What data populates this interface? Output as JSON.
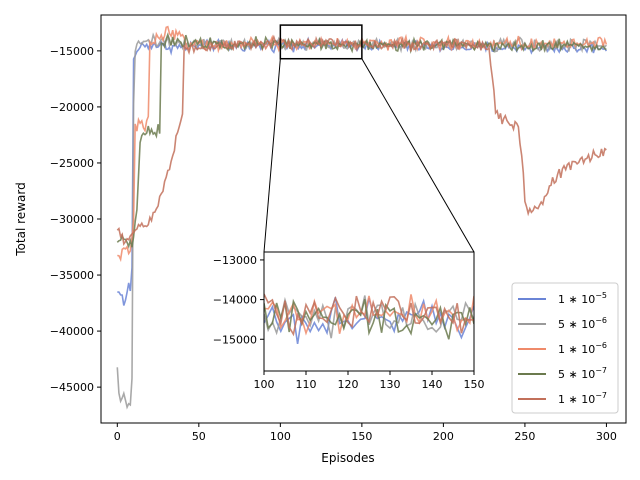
{
  "chart_data": {
    "type": "line",
    "xlabel": "Episodes",
    "ylabel": "Total reward",
    "xlim": [
      -10,
      312
    ],
    "ylim": [
      -48200,
      -11800
    ],
    "xticks": [
      0,
      50,
      100,
      150,
      200,
      250,
      300
    ],
    "yticks": [
      -45000,
      -40000,
      -35000,
      -30000,
      -25000,
      -20000,
      -15000
    ],
    "legend_position": "lower right",
    "grid": false,
    "series": [
      {
        "name": "1*10^-5",
        "legend_base": "1 ∗ 10",
        "legend_exp": "−5",
        "color": "#6a84d6",
        "keypoints": [
          [
            0,
            -36600
          ],
          [
            2,
            -36400
          ],
          [
            4,
            -37600
          ],
          [
            6,
            -36800
          ],
          [
            7,
            -35600
          ],
          [
            8,
            -36600
          ],
          [
            9,
            -34500
          ],
          [
            10,
            -15500
          ],
          [
            12,
            -15200
          ],
          [
            14,
            -14500
          ],
          [
            16,
            -14600
          ],
          [
            20,
            -14400
          ],
          [
            30,
            -14600
          ],
          [
            40,
            -14700
          ],
          [
            60,
            -14500
          ],
          [
            80,
            -14600
          ],
          [
            100,
            -14500
          ],
          [
            150,
            -14500
          ],
          [
            220,
            -14700
          ],
          [
            250,
            -14700
          ],
          [
            280,
            -14800
          ],
          [
            300,
            -14700
          ]
        ],
        "noise": 380
      },
      {
        "name": "5*10^-6",
        "legend_base": "5 ∗ 10",
        "legend_exp": "−6",
        "color": "#9a9a9a",
        "keypoints": [
          [
            0,
            -43600
          ],
          [
            1,
            -45500
          ],
          [
            2,
            -46300
          ],
          [
            4,
            -46100
          ],
          [
            6,
            -46400
          ],
          [
            7,
            -46100
          ],
          [
            8,
            -46500
          ],
          [
            9,
            -44000
          ],
          [
            10,
            -20000
          ],
          [
            11,
            -15000
          ],
          [
            14,
            -14300
          ],
          [
            20,
            -14000
          ],
          [
            40,
            -14300
          ],
          [
            60,
            -14400
          ],
          [
            100,
            -14400
          ],
          [
            150,
            -14400
          ],
          [
            220,
            -14500
          ],
          [
            250,
            -14400
          ],
          [
            280,
            -14500
          ],
          [
            300,
            -14400
          ]
        ],
        "noise": 420
      },
      {
        "name": "1*10^-6",
        "legend_base": "1 ∗ 10",
        "legend_exp": "−6",
        "color": "#ef8a6a",
        "keypoints": [
          [
            0,
            -33400
          ],
          [
            4,
            -32800
          ],
          [
            8,
            -33000
          ],
          [
            10,
            -30000
          ],
          [
            11,
            -22000
          ],
          [
            13,
            -21500
          ],
          [
            16,
            -21800
          ],
          [
            18,
            -21600
          ],
          [
            19,
            -20800
          ],
          [
            20,
            -14600
          ],
          [
            24,
            -13700
          ],
          [
            30,
            -13300
          ],
          [
            35,
            -13500
          ],
          [
            40,
            -13600
          ],
          [
            42,
            -14300
          ],
          [
            60,
            -14500
          ],
          [
            100,
            -14400
          ],
          [
            150,
            -14300
          ],
          [
            220,
            -14400
          ],
          [
            250,
            -14300
          ],
          [
            280,
            -14400
          ],
          [
            300,
            -14100
          ]
        ],
        "noise": 420
      },
      {
        "name": "5*10^-7",
        "legend_base": "5 ∗ 10",
        "legend_exp": "−7",
        "color": "#6b7a4e",
        "keypoints": [
          [
            0,
            -32000
          ],
          [
            5,
            -31600
          ],
          [
            9,
            -32500
          ],
          [
            10,
            -31500
          ],
          [
            12,
            -29000
          ],
          [
            14,
            -23000
          ],
          [
            16,
            -22200
          ],
          [
            20,
            -22000
          ],
          [
            24,
            -22500
          ],
          [
            26,
            -21800
          ],
          [
            27,
            -14500
          ],
          [
            30,
            -14200
          ],
          [
            40,
            -14100
          ],
          [
            60,
            -14300
          ],
          [
            100,
            -14400
          ],
          [
            150,
            -14500
          ],
          [
            220,
            -14400
          ],
          [
            250,
            -14600
          ],
          [
            280,
            -14400
          ],
          [
            300,
            -14800
          ]
        ],
        "noise": 420
      },
      {
        "name": "1*10^-7",
        "legend_base": "1 ∗ 10",
        "legend_exp": "−7",
        "color": "#c2705a",
        "keypoints": [
          [
            0,
            -31200
          ],
          [
            5,
            -31900
          ],
          [
            8,
            -31600
          ],
          [
            10,
            -31200
          ],
          [
            15,
            -30500
          ],
          [
            20,
            -30200
          ],
          [
            24,
            -29200
          ],
          [
            28,
            -27200
          ],
          [
            32,
            -25500
          ],
          [
            35,
            -23800
          ],
          [
            38,
            -21500
          ],
          [
            40,
            -20600
          ],
          [
            41,
            -15000
          ],
          [
            45,
            -14700
          ],
          [
            60,
            -14600
          ],
          [
            100,
            -14300
          ],
          [
            150,
            -14400
          ],
          [
            200,
            -14400
          ],
          [
            228,
            -14700
          ],
          [
            230,
            -17000
          ],
          [
            232,
            -20500
          ],
          [
            240,
            -21500
          ],
          [
            246,
            -21800
          ],
          [
            248,
            -24500
          ],
          [
            250,
            -28500
          ],
          [
            254,
            -29200
          ],
          [
            257,
            -29300
          ],
          [
            262,
            -28200
          ],
          [
            268,
            -26500
          ],
          [
            274,
            -25600
          ],
          [
            280,
            -25200
          ],
          [
            285,
            -24700
          ],
          [
            290,
            -24500
          ],
          [
            295,
            -24300
          ],
          [
            300,
            -24000
          ]
        ],
        "noise": 420
      }
    ],
    "inset": {
      "xlim": [
        100,
        150
      ],
      "ylim": [
        -15800,
        -12800
      ],
      "xticks": [
        100,
        110,
        120,
        130,
        140,
        150
      ],
      "yticks": [
        -15000,
        -14000,
        -13000
      ],
      "zoom_box": {
        "x": [
          100,
          150
        ],
        "y": [
          -15700,
          -12700
        ]
      }
    }
  }
}
